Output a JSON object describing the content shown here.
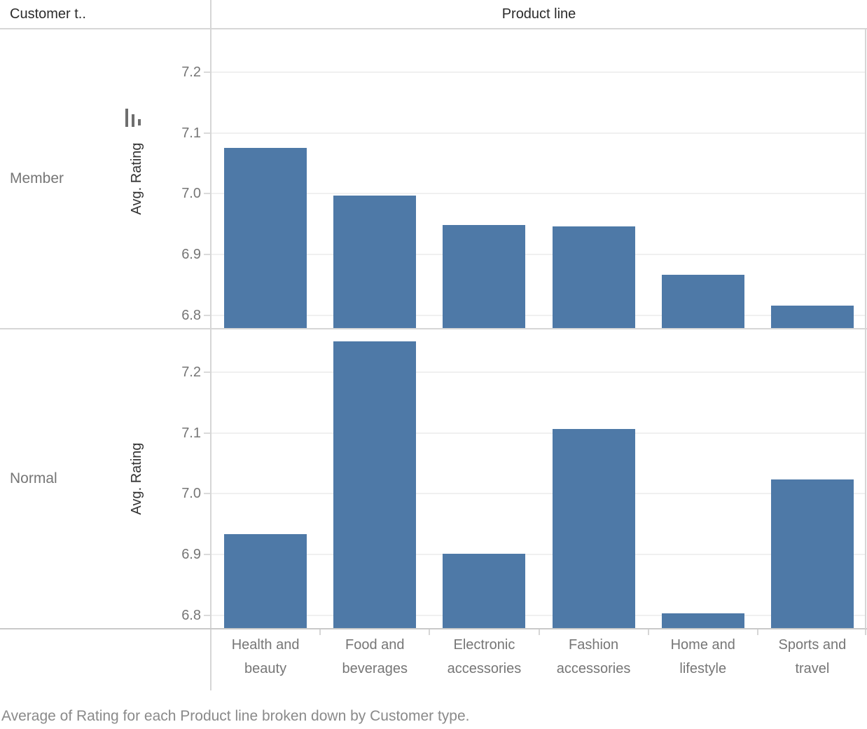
{
  "header": {
    "row_field": "Customer t..",
    "col_field": "Product line"
  },
  "rows": [
    {
      "label": "Member"
    },
    {
      "label": "Normal"
    }
  ],
  "axis": {
    "title": "Avg. Rating",
    "ticks": [
      "6.8",
      "6.9",
      "7.0",
      "7.1",
      "7.2"
    ],
    "tick_values": [
      6.8,
      6.9,
      7.0,
      7.1,
      7.2
    ]
  },
  "caption": "Average of Rating for each Product line broken down by Customer type.",
  "colors": {
    "bar": "#4e79a7",
    "gridline": "#f0f0f0",
    "divider": "#d6d6d6",
    "header_text": "#2b2b2b",
    "muted_text": "#767676"
  },
  "chart_data": {
    "type": "bar",
    "categories": [
      "Health and beauty",
      "Food and beverages",
      "Electronic accessories",
      "Fashion accessories",
      "Home and lifestyle",
      "Sports and travel"
    ],
    "series": [
      {
        "name": "Member",
        "values": [
          7.076,
          6.997,
          6.949,
          6.946,
          6.867,
          6.816
        ]
      },
      {
        "name": "Normal",
        "values": [
          6.934,
          7.251,
          6.901,
          7.107,
          6.803,
          7.024
        ]
      }
    ],
    "title": "Average of Rating for each Product line broken down by Customer type.",
    "xlabel": "Product line",
    "ylabel": "Avg. Rating",
    "ylim": [
      6.78,
      7.27
    ],
    "grid": true,
    "legend": false
  }
}
